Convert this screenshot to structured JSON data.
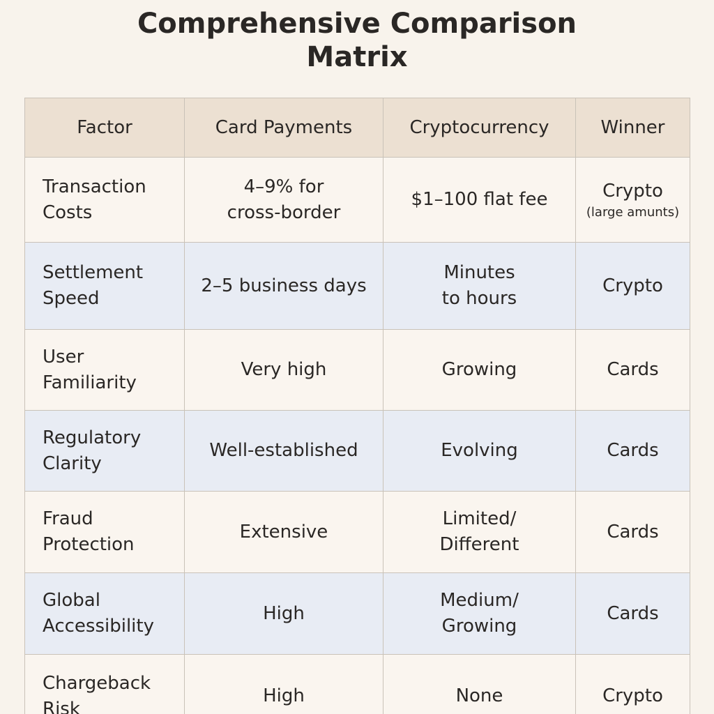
{
  "title": {
    "line1": "Comprehensive Comparison",
    "line2": "Matrix"
  },
  "table": {
    "headers": [
      "Factor",
      "Card Payments",
      "Cryptocurrency",
      "Winner"
    ],
    "rows": [
      {
        "factor": [
          "Transaction",
          "Costs"
        ],
        "cards": [
          "4–9% for",
          "cross-border"
        ],
        "crypto": [
          "$1–100 flat fee"
        ],
        "winner": "Crypto",
        "winner_note": "(large amunts)"
      },
      {
        "factor": [
          "Settlement",
          "Speed"
        ],
        "cards": [
          "2–5 business days"
        ],
        "crypto": [
          "Minutes",
          "to hours"
        ],
        "winner": "Crypto"
      },
      {
        "factor": [
          "User",
          "Familiarity"
        ],
        "cards": [
          "Very high"
        ],
        "crypto": [
          "Growing"
        ],
        "winner": "Cards"
      },
      {
        "factor": [
          "Regulatory",
          "Clarity"
        ],
        "cards": [
          "Well-established"
        ],
        "crypto": [
          "Evolving"
        ],
        "winner": "Cards"
      },
      {
        "factor": [
          "Fraud",
          "Protection"
        ],
        "cards": [
          "Extensive"
        ],
        "crypto": [
          "Limited/",
          "Different"
        ],
        "winner": "Cards"
      },
      {
        "factor": [
          "Global",
          "Accessibility"
        ],
        "cards": [
          "High"
        ],
        "crypto": [
          "Medium/",
          "Growing"
        ],
        "winner": "Cards"
      },
      {
        "factor": [
          "Chargeback",
          "Risk"
        ],
        "cards": [
          "High"
        ],
        "crypto": [
          "None"
        ],
        "winner": "Crypto"
      }
    ]
  }
}
